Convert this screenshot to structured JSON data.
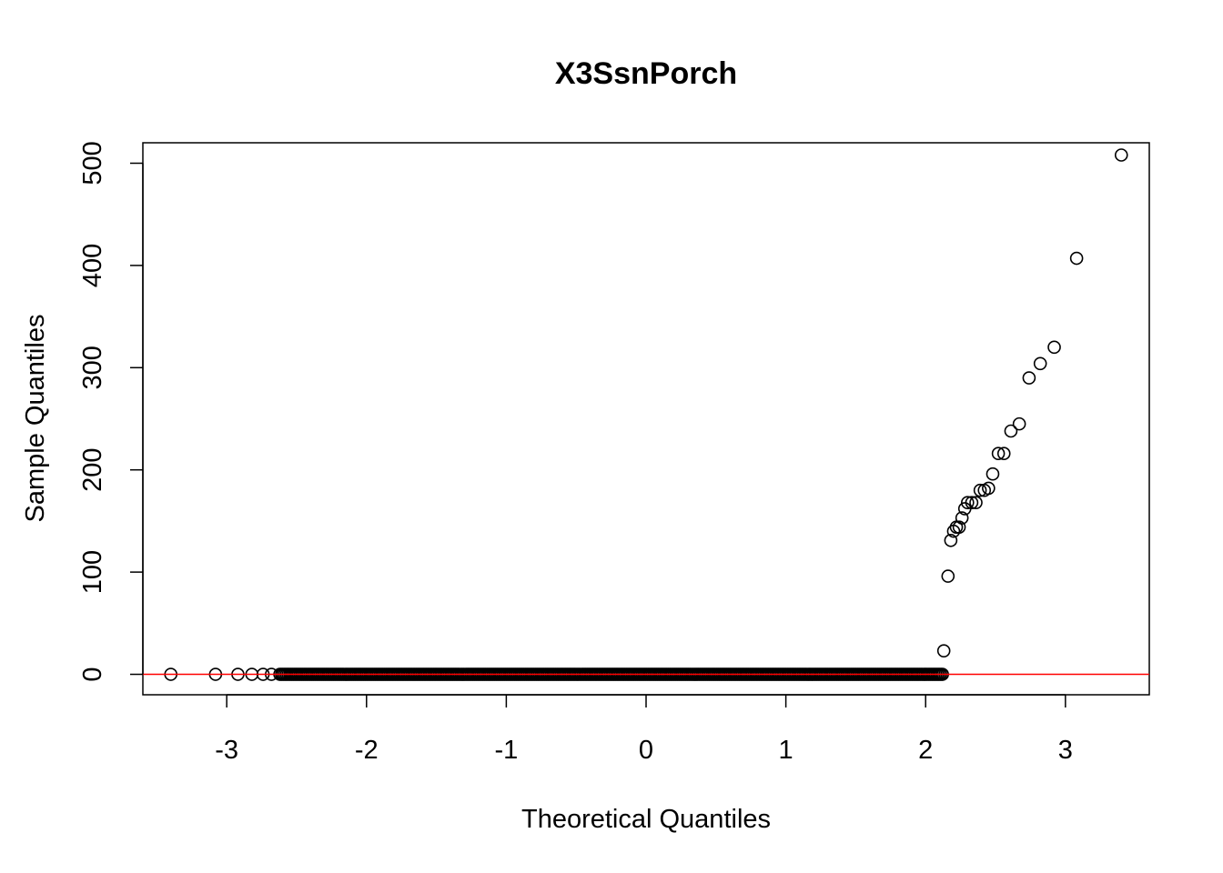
{
  "chart_data": {
    "type": "scatter",
    "title": "X3SsnPorch",
    "xlabel": "Theoretical Quantiles",
    "ylabel": "Sample Quantiles",
    "xlim": [
      -3.6,
      3.6
    ],
    "ylim": [
      -20,
      520
    ],
    "x_ticks": [
      -3,
      -2,
      -1,
      0,
      1,
      2,
      3
    ],
    "y_ticks": [
      0,
      100,
      200,
      300,
      400,
      500
    ],
    "grid": false,
    "legend": "none",
    "colors": {
      "points": "#000000",
      "reference_line": "#ff0000",
      "frame": "#000000"
    },
    "reference_line": {
      "intercept": 0,
      "slope": 0
    },
    "zero_points_range": [
      -3.4,
      2.13
    ],
    "points": [
      [
        -3.4,
        0
      ],
      [
        -3.08,
        0
      ],
      [
        -2.92,
        0
      ],
      [
        -2.82,
        0
      ],
      [
        -2.74,
        0
      ],
      [
        -2.68,
        0
      ],
      [
        2.13,
        23
      ],
      [
        2.16,
        96
      ],
      [
        2.18,
        131
      ],
      [
        2.2,
        140
      ],
      [
        2.22,
        144
      ],
      [
        2.24,
        144
      ],
      [
        2.26,
        153
      ],
      [
        2.28,
        162
      ],
      [
        2.3,
        168
      ],
      [
        2.33,
        168
      ],
      [
        2.36,
        168
      ],
      [
        2.39,
        180
      ],
      [
        2.42,
        180
      ],
      [
        2.45,
        182
      ],
      [
        2.48,
        196
      ],
      [
        2.52,
        216
      ],
      [
        2.56,
        216
      ],
      [
        2.61,
        238
      ],
      [
        2.67,
        245
      ],
      [
        2.74,
        290
      ],
      [
        2.82,
        304
      ],
      [
        2.92,
        320
      ],
      [
        3.08,
        407
      ],
      [
        3.4,
        508
      ]
    ]
  }
}
